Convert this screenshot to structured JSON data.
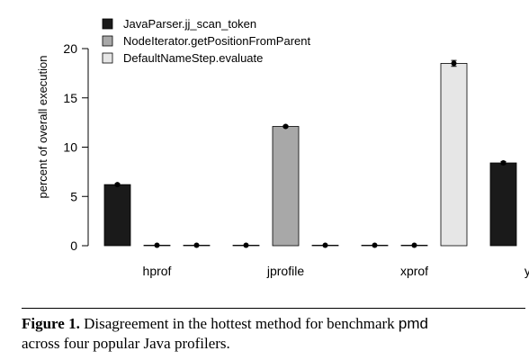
{
  "chart_data": {
    "type": "bar",
    "categories": [
      "hprof",
      "jprofile",
      "xprof",
      "yourkit"
    ],
    "series": [
      {
        "name": "JavaParser.jj_scan_token",
        "color": "#1a1a1a",
        "values": [
          6.2,
          0.05,
          0.05,
          8.4
        ],
        "errors": [
          0.1,
          0.05,
          0.05,
          0.15
        ]
      },
      {
        "name": "NodeIterator.getPositionFromParent",
        "color": "#a8a8a8",
        "values": [
          0.05,
          12.1,
          0.05,
          0.05
        ],
        "errors": [
          0.05,
          0.1,
          0.05,
          0.05
        ]
      },
      {
        "name": "DefaultNameStep.evaluate",
        "color": "#e6e6e6",
        "values": [
          0.05,
          0.05,
          18.5,
          0.05
        ],
        "errors": [
          0.05,
          0.05,
          0.3,
          0.05
        ]
      }
    ],
    "title": "",
    "xlabel": "",
    "ylabel": "percent of overall execution",
    "ylim": [
      0,
      20
    ],
    "yticks": [
      0,
      5,
      10,
      15,
      20
    ],
    "grid": false,
    "legend": "top-left"
  },
  "caption": {
    "label": "Figure 1.",
    "text_before": "Disagreement in the hottest method for benchmark ",
    "benchmark": "pmd",
    "text_after": "across four popular Java profilers."
  }
}
